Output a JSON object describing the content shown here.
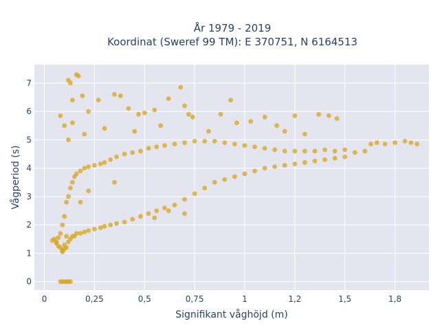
{
  "chart_data": {
    "type": "scatter",
    "title_line1": "År 1979 - 2019",
    "title_line2": "Koordinat (Sweref 99 TM): E 370751, N 6164513",
    "xlabel": "Signifikant våghöjd (m)",
    "ylabel": "Vågperiod (s)",
    "xlim": [
      -0.05,
      1.92
    ],
    "ylim": [
      -0.3,
      7.65
    ],
    "x_ticks": [
      0,
      0.25,
      0.5,
      0.75,
      1,
      1.25,
      1.5,
      1.75
    ],
    "x_tick_labels": [
      "0",
      "0,25",
      "0,5",
      "0,75",
      "1",
      "1,2",
      "1,5",
      "1,8"
    ],
    "y_ticks": [
      0,
      1,
      2,
      3,
      4,
      5,
      6,
      7
    ],
    "y_tick_labels": [
      "0",
      "1",
      "2",
      "3",
      "4",
      "5",
      "6",
      "7"
    ],
    "grid": true,
    "marker_color": "#d4a51f",
    "plot_background": "#e5e5ef",
    "series": [
      {
        "points": [
          [
            0.04,
            1.45
          ],
          [
            0.05,
            1.5
          ],
          [
            0.06,
            1.4
          ],
          [
            0.07,
            1.55
          ],
          [
            0.08,
            1.2
          ],
          [
            0.08,
            1.7
          ],
          [
            0.09,
            1.1
          ],
          [
            0.09,
            2.0
          ],
          [
            0.1,
            1.3
          ],
          [
            0.1,
            2.3
          ],
          [
            0.11,
            1.6
          ],
          [
            0.11,
            2.8
          ],
          [
            0.12,
            1.4
          ],
          [
            0.12,
            3.0
          ],
          [
            0.13,
            1.5
          ],
          [
            0.13,
            3.3
          ],
          [
            0.14,
            1.6
          ],
          [
            0.14,
            3.5
          ],
          [
            0.15,
            1.6
          ],
          [
            0.15,
            3.7
          ],
          [
            0.16,
            1.7
          ],
          [
            0.16,
            3.8
          ],
          [
            0.18,
            1.7
          ],
          [
            0.18,
            3.9
          ],
          [
            0.2,
            1.75
          ],
          [
            0.2,
            4.0
          ],
          [
            0.22,
            1.8
          ],
          [
            0.22,
            4.05
          ],
          [
            0.25,
            1.85
          ],
          [
            0.25,
            4.1
          ],
          [
            0.28,
            1.9
          ],
          [
            0.28,
            4.15
          ],
          [
            0.3,
            1.95
          ],
          [
            0.3,
            4.2
          ],
          [
            0.33,
            2.0
          ],
          [
            0.33,
            4.3
          ],
          [
            0.36,
            2.05
          ],
          [
            0.36,
            4.4
          ],
          [
            0.4,
            2.1
          ],
          [
            0.4,
            4.5
          ],
          [
            0.44,
            2.2
          ],
          [
            0.44,
            4.55
          ],
          [
            0.48,
            2.3
          ],
          [
            0.48,
            4.6
          ],
          [
            0.52,
            2.4
          ],
          [
            0.52,
            4.7
          ],
          [
            0.56,
            2.5
          ],
          [
            0.56,
            4.75
          ],
          [
            0.6,
            2.6
          ],
          [
            0.6,
            4.8
          ],
          [
            0.65,
            2.7
          ],
          [
            0.65,
            4.85
          ],
          [
            0.7,
            2.9
          ],
          [
            0.7,
            4.9
          ],
          [
            0.75,
            3.1
          ],
          [
            0.75,
            4.95
          ],
          [
            0.8,
            3.3
          ],
          [
            0.8,
            4.95
          ],
          [
            0.85,
            3.5
          ],
          [
            0.85,
            4.95
          ],
          [
            0.9,
            3.6
          ],
          [
            0.9,
            4.9
          ],
          [
            0.95,
            3.7
          ],
          [
            0.95,
            4.85
          ],
          [
            1.0,
            3.8
          ],
          [
            1.0,
            4.8
          ],
          [
            1.05,
            3.9
          ],
          [
            1.05,
            4.75
          ],
          [
            1.1,
            4.0
          ],
          [
            1.1,
            4.7
          ],
          [
            1.15,
            4.05
          ],
          [
            1.15,
            4.65
          ],
          [
            1.2,
            4.1
          ],
          [
            1.2,
            4.6
          ],
          [
            1.25,
            4.15
          ],
          [
            1.25,
            4.6
          ],
          [
            1.3,
            4.2
          ],
          [
            1.3,
            4.6
          ],
          [
            1.35,
            4.25
          ],
          [
            1.35,
            4.6
          ],
          [
            1.4,
            4.3
          ],
          [
            1.4,
            4.65
          ],
          [
            1.45,
            4.35
          ],
          [
            1.45,
            4.6
          ],
          [
            1.5,
            4.4
          ],
          [
            1.5,
            4.65
          ],
          [
            1.55,
            4.55
          ],
          [
            1.6,
            4.6
          ],
          [
            1.63,
            4.85
          ],
          [
            1.66,
            4.9
          ],
          [
            1.7,
            4.85
          ],
          [
            1.75,
            4.9
          ],
          [
            1.8,
            4.95
          ],
          [
            1.83,
            4.9
          ],
          [
            1.86,
            4.85
          ],
          [
            0.12,
            7.1
          ],
          [
            0.13,
            7.0
          ],
          [
            0.14,
            6.4
          ],
          [
            0.16,
            7.3
          ],
          [
            0.17,
            7.25
          ],
          [
            0.19,
            6.55
          ],
          [
            0.22,
            6.0
          ],
          [
            0.27,
            6.4
          ],
          [
            0.35,
            6.6
          ],
          [
            0.38,
            6.55
          ],
          [
            0.42,
            6.1
          ],
          [
            0.47,
            5.9
          ],
          [
            0.5,
            5.95
          ],
          [
            0.55,
            6.05
          ],
          [
            0.58,
            5.5
          ],
          [
            0.62,
            6.45
          ],
          [
            0.68,
            6.85
          ],
          [
            0.7,
            6.2
          ],
          [
            0.72,
            5.9
          ],
          [
            0.74,
            5.8
          ],
          [
            0.82,
            5.3
          ],
          [
            0.88,
            5.9
          ],
          [
            0.93,
            6.4
          ],
          [
            0.96,
            5.6
          ],
          [
            1.03,
            5.65
          ],
          [
            1.1,
            5.8
          ],
          [
            1.16,
            5.5
          ],
          [
            1.2,
            5.3
          ],
          [
            1.25,
            5.85
          ],
          [
            1.3,
            5.2
          ],
          [
            1.37,
            5.9
          ],
          [
            1.42,
            5.85
          ],
          [
            1.46,
            5.75
          ],
          [
            0.08,
            5.85
          ],
          [
            0.1,
            5.5
          ],
          [
            0.12,
            5.0
          ],
          [
            0.14,
            5.6
          ],
          [
            0.2,
            5.2
          ],
          [
            0.3,
            5.4
          ],
          [
            0.45,
            5.3
          ],
          [
            0.08,
            0
          ],
          [
            0.09,
            0
          ],
          [
            0.1,
            0
          ],
          [
            0.11,
            0
          ],
          [
            0.12,
            0
          ],
          [
            0.13,
            0
          ],
          [
            0.55,
            2.25
          ],
          [
            0.62,
            2.5
          ],
          [
            0.7,
            2.4
          ],
          [
            0.06,
            1.35
          ],
          [
            0.07,
            1.25
          ],
          [
            0.09,
            1.05
          ],
          [
            0.1,
            1.15
          ],
          [
            0.11,
            1.2
          ],
          [
            0.18,
            2.8
          ],
          [
            0.22,
            3.2
          ],
          [
            0.35,
            3.5
          ]
        ]
      }
    ]
  }
}
